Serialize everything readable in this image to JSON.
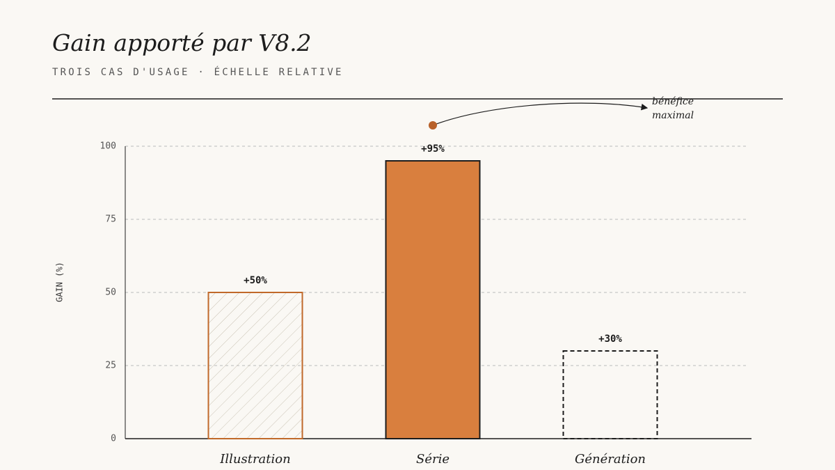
{
  "chart_data": {
    "type": "bar",
    "title": "Gain apporté par V8.2",
    "subtitle": "TROIS CAS D'USAGE · ÉCHELLE RELATIVE",
    "y_label": "GAIN (%)",
    "annotation": "bénéfice maximal",
    "categories": [
      "Illustration",
      "Série",
      "Génération"
    ],
    "values": [
      50,
      95,
      30
    ],
    "value_labels": [
      "+50%",
      "+95%",
      "+30%"
    ],
    "colors": [
      "#c0692a",
      "#d97f3e",
      "#1c1c1c"
    ],
    "styles": [
      "hatched",
      "solid",
      "dashed"
    ],
    "ylim": [
      0,
      100
    ],
    "yticks": [
      0,
      25,
      50,
      75,
      100
    ],
    "grid": true
  }
}
